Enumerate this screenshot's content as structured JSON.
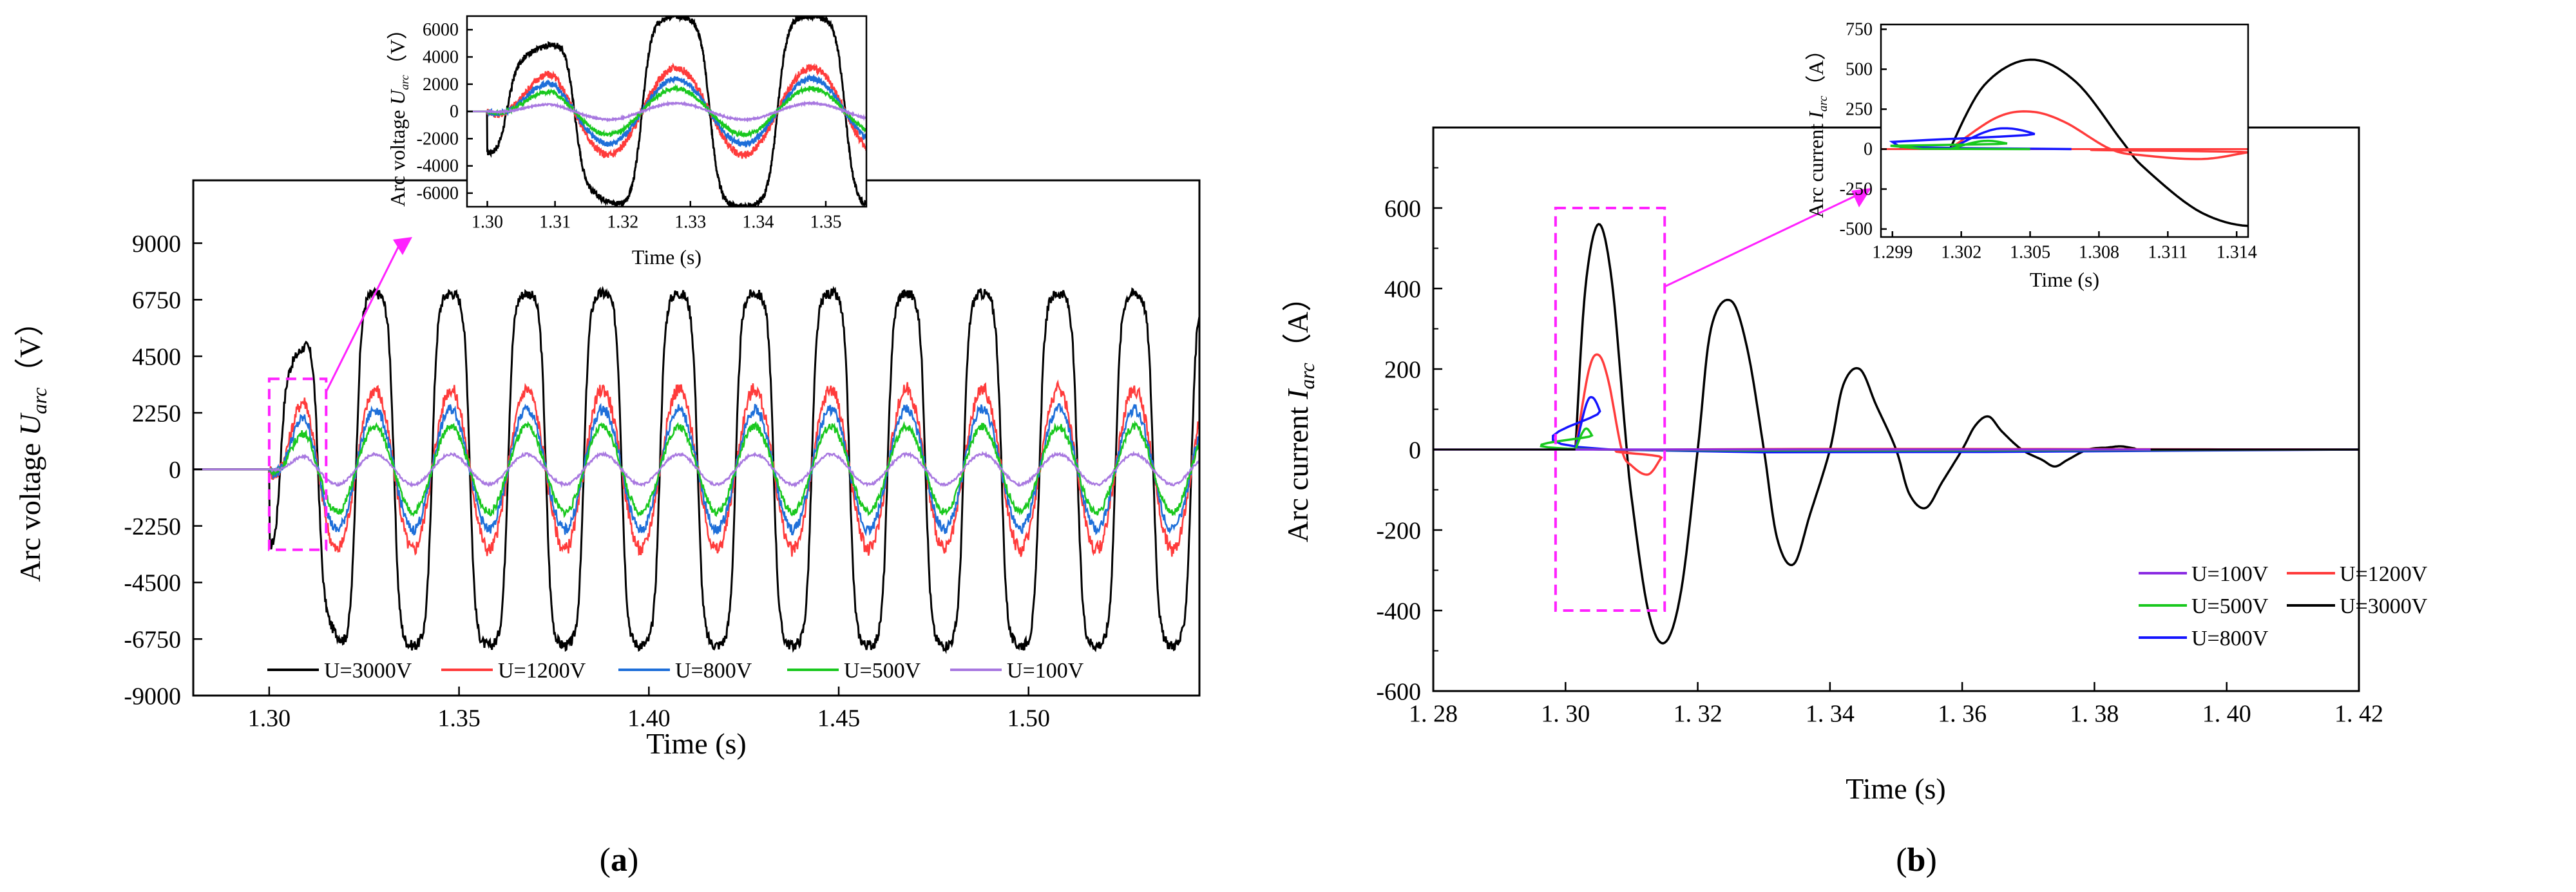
{
  "colors": {
    "u3000": "#000000",
    "u1200": "#ff3b3b",
    "u800": "#1e6fd9",
    "u500": "#19c81e",
    "u100": "#a878e0",
    "u800b": "#1414ff",
    "u100b": "#8a2be2",
    "zoom": "#ff22ff"
  },
  "chart_data": [
    {
      "type": "line",
      "panel": "a",
      "caption_open": "(",
      "caption_letter": "a",
      "caption_close": ")",
      "xlabel": "Time (s)",
      "ylabel_main": "Arc voltage ",
      "ylabel_sym": "U",
      "ylabel_sub": "arc",
      "ylabel_unit": "（V）",
      "xlim": [
        1.28,
        1.545
      ],
      "ylim": [
        -9000,
        11500
      ],
      "xticks": [
        "1.30",
        "1.35",
        "1.40",
        "1.45",
        "1.50"
      ],
      "xtick_values": [
        1.3,
        1.35,
        1.4,
        1.45,
        1.5
      ],
      "yticks": [
        "-9000",
        "-6750",
        "-4500",
        "-2250",
        "0",
        "2250",
        "4500",
        "6750",
        "9000"
      ],
      "ytick_values": [
        -9000,
        -6750,
        -4500,
        -2250,
        0,
        2250,
        4500,
        6750,
        9000
      ],
      "frequency_hz": 50,
      "arc_start_s": 1.3,
      "series": [
        {
          "name": "U=3000V",
          "label": "U=3000V",
          "color_key": "u3000",
          "peak": 7000
        },
        {
          "name": "U=1200V",
          "label": "U=1200V",
          "color_key": "u1200",
          "peak": 3200
        },
        {
          "name": "U=800V",
          "label": "U=800V",
          "color_key": "u800",
          "peak": 2400
        },
        {
          "name": "U=500V",
          "label": "U=500V",
          "color_key": "u500",
          "peak": 1700
        },
        {
          "name": "U=100V",
          "label": "U=100V",
          "color_key": "u100",
          "peak": 600
        }
      ],
      "zoom_box": {
        "x": [
          1.3,
          1.315
        ],
        "y": [
          -3200,
          3600
        ]
      },
      "inset": {
        "xlabel": "Time (s)",
        "ylabel_main": "Arc voltage ",
        "ylabel_sym": "U",
        "ylabel_sub": "arc",
        "ylabel_unit": "（V）",
        "xlim": [
          1.297,
          1.356
        ],
        "ylim": [
          -7000,
          7000
        ],
        "xticks": [
          "1.30",
          "1.31",
          "1.32",
          "1.33",
          "1.34",
          "1.35"
        ],
        "xtick_values": [
          1.3,
          1.31,
          1.32,
          1.33,
          1.34,
          1.35
        ],
        "yticks": [
          "-6000",
          "-4000",
          "-2000",
          "0",
          "2000",
          "4000",
          "6000"
        ],
        "ytick_values": [
          -6000,
          -4000,
          -2000,
          0,
          2000,
          4000,
          6000
        ]
      }
    },
    {
      "type": "line",
      "panel": "b",
      "caption_open": "(",
      "caption_letter": "b",
      "caption_close": ")",
      "xlabel": "Time (s)",
      "ylabel_main": "Arc current ",
      "ylabel_sym": "I",
      "ylabel_sub": "arc",
      "ylabel_unit": "（A）",
      "xlim": [
        1.28,
        1.42
      ],
      "ylim": [
        -600,
        800
      ],
      "xticks": [
        "1. 28",
        "1. 30",
        "1. 32",
        "1. 34",
        "1. 36",
        "1. 38",
        "1. 40",
        "1. 42"
      ],
      "xtick_values": [
        1.28,
        1.3,
        1.32,
        1.34,
        1.36,
        1.38,
        1.4,
        1.42
      ],
      "yticks": [
        "-600",
        "-400",
        "-200",
        "0",
        "200",
        "400",
        "600"
      ],
      "ytick_values": [
        -600,
        -400,
        -200,
        0,
        200,
        400,
        600
      ],
      "series": [
        {
          "name": "U=100V",
          "label": "U=100V",
          "color_key": "u100b",
          "points": [
            [
              1.28,
              0
            ],
            [
              1.42,
              0
            ]
          ]
        },
        {
          "name": "U=500V",
          "label": "U=500V",
          "color_key": "u500",
          "points": [
            [
              1.3015,
              0
            ],
            [
              1.3025,
              40
            ],
            [
              1.3032,
              52
            ],
            [
              1.304,
              35
            ],
            [
              1.305,
              0
            ],
            [
              1.42,
              0
            ]
          ]
        },
        {
          "name": "U=800V",
          "label": "U=800V",
          "color_key": "u800b",
          "points": [
            [
              1.3015,
              0
            ],
            [
              1.303,
              105
            ],
            [
              1.304,
              130
            ],
            [
              1.3052,
              95
            ],
            [
              1.3068,
              0
            ],
            [
              1.42,
              0
            ]
          ]
        },
        {
          "name": "U=1200V",
          "label": "U=1200V",
          "color_key": "u1200",
          "points": [
            [
              1.3015,
              0
            ],
            [
              1.3035,
              195
            ],
            [
              1.305,
              235
            ],
            [
              1.3065,
              170
            ],
            [
              1.3085,
              0
            ],
            [
              1.31,
              -40
            ],
            [
              1.3125,
              -62
            ],
            [
              1.3145,
              -20
            ],
            [
              1.3155,
              0
            ],
            [
              1.42,
              0
            ]
          ]
        },
        {
          "name": "U=3000V",
          "label": "U=3000V",
          "color_key": "u3000",
          "points": [
            [
              1.3015,
              0
            ],
            [
              1.303,
              400
            ],
            [
              1.305,
              560
            ],
            [
              1.307,
              420
            ],
            [
              1.309,
              50
            ],
            [
              1.31,
              -120
            ],
            [
              1.3125,
              -400
            ],
            [
              1.315,
              -480
            ],
            [
              1.3175,
              -350
            ],
            [
              1.32,
              0
            ],
            [
              1.322,
              300
            ],
            [
              1.325,
              370
            ],
            [
              1.3275,
              250
            ],
            [
              1.33,
              0
            ],
            [
              1.332,
              -220
            ],
            [
              1.3345,
              -285
            ],
            [
              1.337,
              -160
            ],
            [
              1.34,
              0
            ],
            [
              1.342,
              160
            ],
            [
              1.3445,
              200
            ],
            [
              1.347,
              110
            ],
            [
              1.35,
              0
            ],
            [
              1.352,
              -110
            ],
            [
              1.3545,
              -145
            ],
            [
              1.357,
              -80
            ],
            [
              1.36,
              0
            ],
            [
              1.362,
              60
            ],
            [
              1.364,
              82
            ],
            [
              1.366,
              45
            ],
            [
              1.369,
              0
            ],
            [
              1.372,
              -25
            ],
            [
              1.374,
              -42
            ],
            [
              1.376,
              -25
            ],
            [
              1.379,
              0
            ],
            [
              1.382,
              5
            ],
            [
              1.384,
              8
            ],
            [
              1.386,
              3
            ],
            [
              1.388,
              0
            ],
            [
              1.42,
              0
            ]
          ]
        }
      ],
      "zoom_box": {
        "x": [
          1.2985,
          1.315
        ],
        "y": [
          -400,
          600
        ]
      },
      "inset": {
        "xlabel": "Time (s)",
        "ylabel_main": "Arc current ",
        "ylabel_sym": "I",
        "ylabel_sub": "arc",
        "ylabel_unit": "（A）",
        "xlim": [
          1.2985,
          1.3145
        ],
        "ylim": [
          -550,
          780
        ],
        "xticks": [
          "1.299",
          "1.302",
          "1.305",
          "1.308",
          "1.311",
          "1.314"
        ],
        "xtick_values": [
          1.299,
          1.302,
          1.305,
          1.308,
          1.311,
          1.314
        ],
        "yticks": [
          "-500",
          "-250",
          "0",
          "250",
          "500",
          "750"
        ],
        "ytick_values": [
          -500,
          -250,
          0,
          250,
          500,
          750
        ]
      }
    }
  ]
}
